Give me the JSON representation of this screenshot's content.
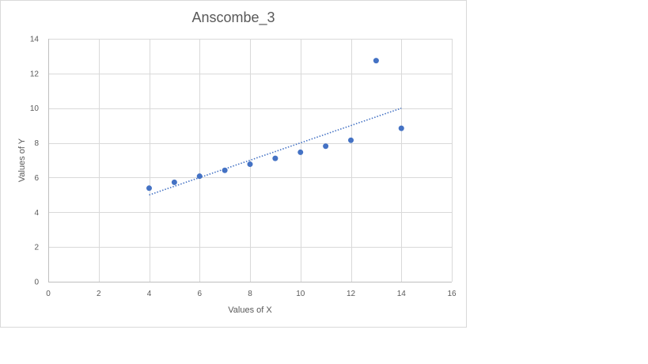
{
  "chart_data": {
    "type": "scatter",
    "title": "Anscombe_3",
    "xlabel": "Values of X",
    "ylabel": "Values of Y",
    "xlim": [
      0,
      16
    ],
    "ylim": [
      0,
      14
    ],
    "xticks": [
      0,
      2,
      4,
      6,
      8,
      10,
      12,
      14,
      16
    ],
    "yticks": [
      0,
      2,
      4,
      6,
      8,
      10,
      12,
      14
    ],
    "grid": true,
    "legend": "none",
    "marker_color": "#4472c4",
    "trendline_color": "#4472c4",
    "series": [
      {
        "x": [
          4,
          5,
          6,
          7,
          8,
          9,
          10,
          11,
          12,
          13,
          14
        ],
        "y": [
          5.39,
          5.73,
          6.08,
          6.42,
          6.77,
          7.11,
          7.46,
          7.81,
          8.15,
          12.74,
          8.84
        ]
      }
    ],
    "trendline": {
      "type": "linear",
      "x": [
        4,
        14
      ],
      "y": [
        5.0,
        10.0
      ],
      "style": "dotted"
    }
  }
}
